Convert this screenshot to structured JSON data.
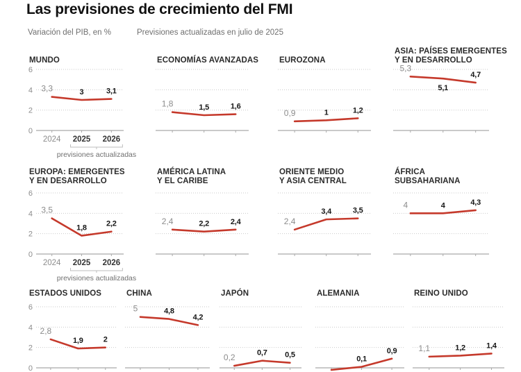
{
  "header": {
    "title": "Las previsiones de crecimiento del FMI",
    "subtitle_left": "Variación del PIB, en %",
    "subtitle_right": "Previsiones actualizadas en julio de 2025"
  },
  "colors": {
    "line": "#c5392b",
    "grid": "#c9c9c9",
    "axis_line": "#a9a9a9",
    "muted_label": "#8c8c8c",
    "bold_label": "#161616"
  },
  "chart_data": {
    "type": "line",
    "x": [
      "2024",
      "2025",
      "2026"
    ],
    "ylim": [
      0,
      6
    ],
    "yticks": [
      "0",
      "2",
      "4",
      "6"
    ],
    "grid": "dotted horizontal gridlines",
    "legend_position": "none",
    "footnote": "previsiones actualizadas",
    "footnote_span": [
      "2025",
      "2026"
    ],
    "charts": [
      {
        "slug": "mundo",
        "title_lines": [
          "MUNDO"
        ],
        "values": [
          3.3,
          3,
          3.1
        ],
        "labels": [
          "3,3",
          "3",
          "3,1"
        ]
      },
      {
        "slug": "economias-avanzadas",
        "title_lines": [
          "ECONOMÍAS AVANZADAS"
        ],
        "values": [
          1.8,
          1.5,
          1.6
        ],
        "labels": [
          "1,8",
          "1,5",
          "1,6"
        ]
      },
      {
        "slug": "eurozona",
        "title_lines": [
          "EUROZONA"
        ],
        "values": [
          0.9,
          1,
          1.2
        ],
        "labels": [
          "0,9",
          "1",
          "1,2"
        ]
      },
      {
        "slug": "asia-paises-emergentes",
        "title_lines": [
          "ASIA: PAÍSES EMERGENTES",
          "Y EN DESARROLLO"
        ],
        "values": [
          5.3,
          5.1,
          4.7
        ],
        "labels": [
          "5,3",
          "5,1",
          "4,7"
        ],
        "label_pos": [
          null,
          "below",
          null
        ]
      },
      {
        "slug": "europa-emergentes",
        "title_lines": [
          "EUROPA: EMERGENTES",
          "Y EN DESARROLLO"
        ],
        "values": [
          3.5,
          1.8,
          2.2
        ],
        "labels": [
          "3,5",
          "1,8",
          "2,2"
        ]
      },
      {
        "slug": "america-latina",
        "title_lines": [
          "AMÉRICA LATINA",
          "Y EL CARIBE"
        ],
        "values": [
          2.4,
          2.2,
          2.4
        ],
        "labels": [
          "2,4",
          "2,2",
          "2,4"
        ]
      },
      {
        "slug": "oriente-medio",
        "title_lines": [
          "ORIENTE MEDIO",
          "Y ASIA CENTRAL"
        ],
        "values": [
          2.4,
          3.4,
          3.5
        ],
        "labels": [
          "2,4",
          "3,4",
          "3,5"
        ]
      },
      {
        "slug": "africa-subsahariana",
        "title_lines": [
          "ÁFRICA",
          "SUBSAHARIANA"
        ],
        "values": [
          4,
          4,
          4.3
        ],
        "labels": [
          "4",
          "4",
          "4,3"
        ]
      },
      {
        "slug": "estados-unidos",
        "title_lines": [
          "ESTADOS UNIDOS"
        ],
        "values": [
          2.8,
          1.9,
          2
        ],
        "labels": [
          "2,8",
          "1,9",
          "2"
        ]
      },
      {
        "slug": "china",
        "title_lines": [
          "CHINA"
        ],
        "values": [
          5,
          4.8,
          4.2
        ],
        "labels": [
          "5",
          "4,8",
          "4,2"
        ]
      },
      {
        "slug": "japon",
        "title_lines": [
          "JAPÓN"
        ],
        "values": [
          0.2,
          0.7,
          0.5
        ],
        "labels": [
          "0,2",
          "0,7",
          "0,5"
        ]
      },
      {
        "slug": "alemania",
        "title_lines": [
          "ALEMANIA"
        ],
        "values": [
          -0.2,
          0.1,
          0.9
        ],
        "labels": [
          "",
          "0,1",
          "0,9"
        ]
      },
      {
        "slug": "reino-unido",
        "title_lines": [
          "REINO UNIDO"
        ],
        "values": [
          1.1,
          1.2,
          1.4
        ],
        "labels": [
          "1,1",
          "1,2",
          "1,4"
        ]
      }
    ]
  }
}
